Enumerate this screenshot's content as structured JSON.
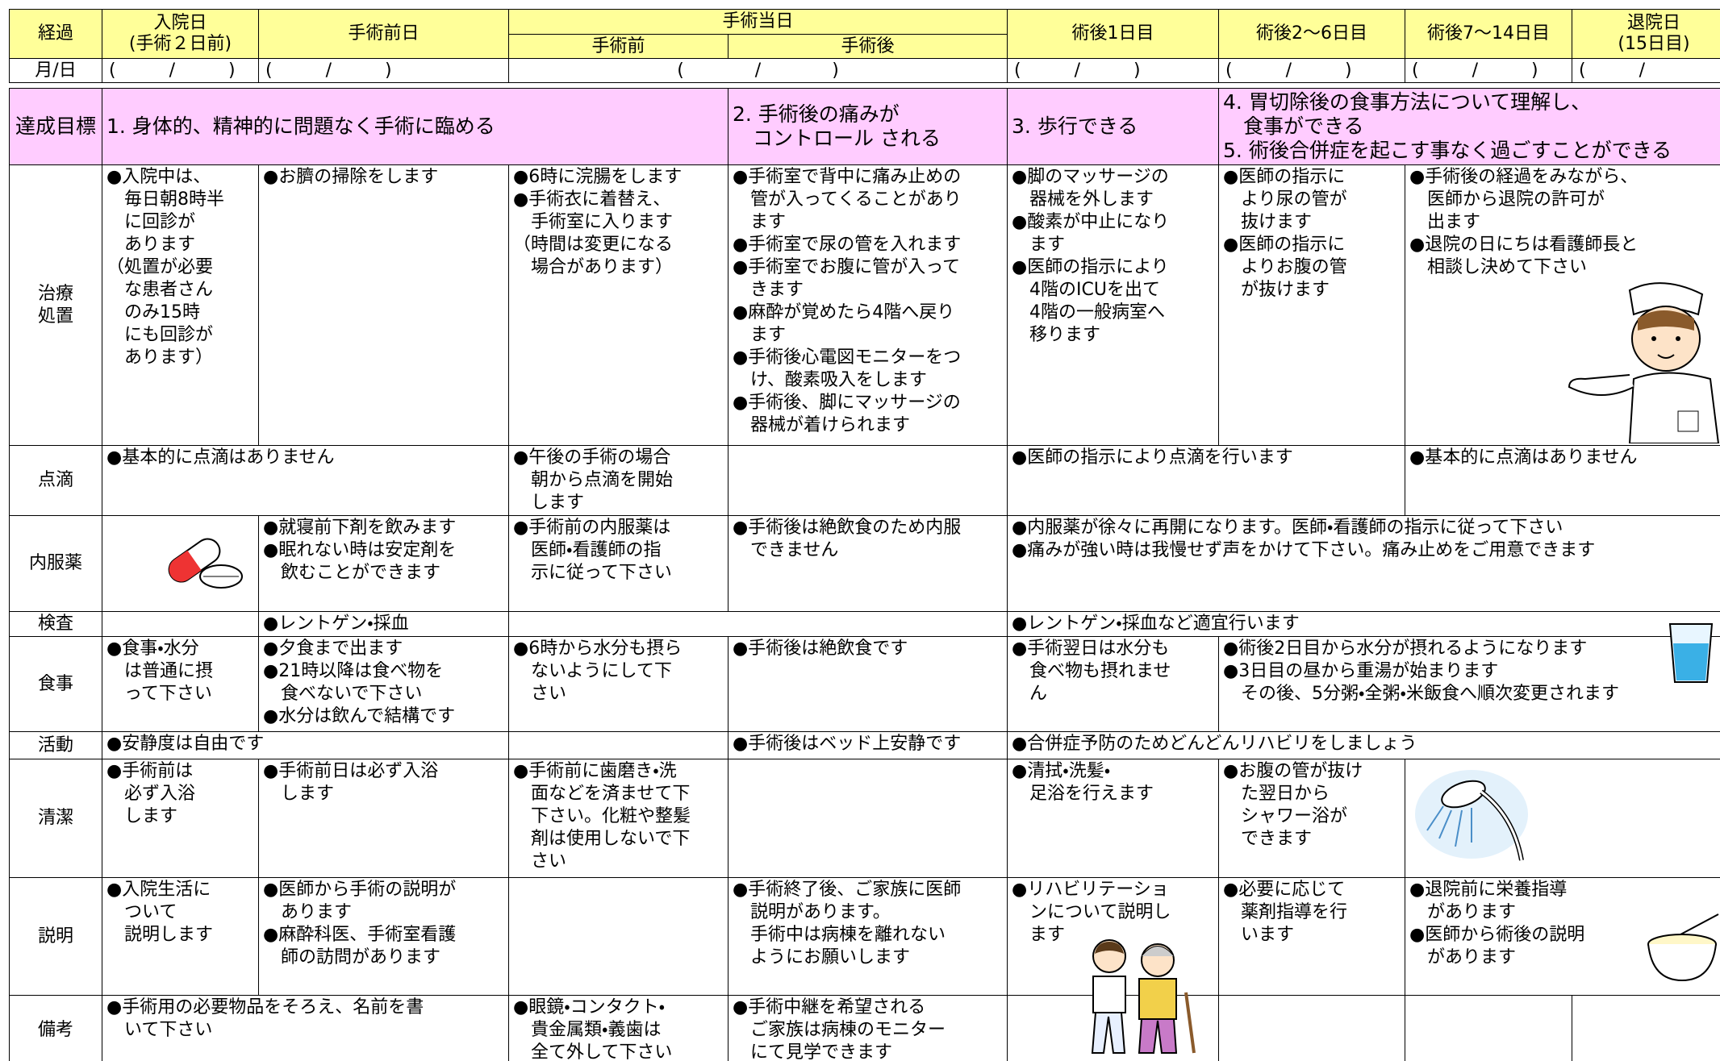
{
  "header": {
    "columns": [
      "経過",
      "入院日\n(手術２日前)",
      "手術前日",
      "手術当日",
      "手術前",
      "手術後",
      "術後1日目",
      "術後2～6日目",
      "術後7～14日目",
      "退院日\n(15日目)"
    ]
  },
  "date_row": {
    "label": "月/日",
    "cells": [
      "(　　　/　　　)",
      "(　　　/　　　)",
      "(　　　　/　　　　)",
      "(　　　/　　　)",
      "(　　　/　　　)",
      "(　　　/　　　)",
      "(　　　/　　"
    ]
  },
  "goals": {
    "label": "達成目標",
    "items": [
      "1. 身体的、精神的に問題なく手術に臨める",
      "2. 手術後の痛みが\n　コントロール される",
      "3. 歩行できる",
      "4. 胃切除後の食事方法について理解し、\n　食事ができる\n5. 術後合併症を起こす事なく過ごすことができる"
    ]
  },
  "rows": [
    {
      "label": "治療\n処置",
      "cells": [
        "●入院中は、\n　毎日朝8時半\n　に回診が\n　あります\n（処置が必要\n　な患者さん\n　のみ15時\n　にも回診が\n　あります）",
        "●お臍の掃除をします",
        "●6時に浣腸をします\n●手術衣に着替え、\n　手術室に入ります\n（時間は変更になる\n　場合があります）",
        "●手術室で背中に痛み止めの\n　管が入ってくることがあり\n　ます\n●手術室で尿の管を入れます\n●手術室でお腹に管が入って\n　きます\n●麻酔が覚めたら4階へ戻り\n　ます\n●手術後心電図モニターをつ\n　け、酸素吸入をします\n●手術後、脚にマッサージの\n　器械が着けられます",
        "●脚のマッサージの\n　器械を外します\n●酸素が中止になり\n　ます\n●医師の指示により\n　4階のICUを出て\n　4階の一般病室へ\n　移ります",
        "●医師の指示に\n　より尿の管が\n　抜けます\n●医師の指示に\n　よりお腹の管\n　が抜けます",
        "●手術後の経過をみながら、\n　医師から退院の許可が\n　出ます\n●退院の日にちは看護師長と\n　相談し決めて下さい"
      ]
    },
    {
      "label": "点滴",
      "cells": [
        "●基本的に点滴はありません",
        "●午後の手術の場合\n　朝から点滴を開始\n　します",
        "●医師の指示により点滴を行います",
        "●基本的に点滴はありません"
      ]
    },
    {
      "label": "内服薬",
      "cells": [
        "●就寝前下剤を飲みます\n●眠れない時は安定剤を\n　飲むことができます",
        "●手術前の内服薬は\n　医師・看護師の指\n　示に従って下さい",
        "●手術後は絶飲食のため内服\n　できません",
        "●内服薬が徐々に再開になります。医師・看護師の指示に従って下さい\n●痛みが強い時は我慢せず声をかけて下さい。痛み止めをご用意できます"
      ]
    },
    {
      "label": "検査",
      "cells": [
        "●レントゲン・採血",
        "●レントゲン・採血など適宜行います"
      ]
    },
    {
      "label": "食事",
      "cells": [
        "●食事・水分\n　は普通に摂\n　って下さい",
        "●夕食まで出ます\n●21時以降は食べ物を\n　食べないで下さい\n●水分は飲んで結構です",
        "●6時から水分も摂ら\n　ないようにして下\n　さい",
        "●手術後は絶飲食です",
        "●手術翌日は水分も\n　食べ物も摂れませ\n　ん",
        "●術後2日目から水分が摂れるようになります\n●3日目の昼から重湯が始まります\n　その後、5分粥・全粥・米飯食へ順次変更されます"
      ]
    },
    {
      "label": "活動",
      "cells": [
        "●安静度は自由です",
        "●手術後はベッド上安静です",
        "●合併症予防のためどんどんリハビリをしましょう"
      ]
    },
    {
      "label": "清潔",
      "cells": [
        "●手術前は\n　必ず入浴\n　します",
        "●手術前日は必ず入浴\n　します",
        "●手術前に歯磨き・洗\n　面などを済ませて下\n　下さい。化粧や整髪\n　剤は使用しないで下\n　さい",
        "●清拭・洗髪・\n　足浴を行えます",
        "●お腹の管が抜け\n　た翌日から\n　シャワー浴が\n　できます"
      ]
    },
    {
      "label": "説明",
      "cells": [
        "●入院生活に\n　ついて\n　説明します",
        "●医師から手術の説明が\n　あります\n●麻酔科医、手術室看護\n　師の訪問があります",
        "●手術終了後、ご家族に医師\n　説明があります。\n　手術中は病棟を離れない\n　ようにお願いします",
        "●リハビリテーショ\n　ンについて説明し\n　ます",
        "●必要に応じて\n　薬剤指導を行\n　います",
        "●退院前に栄養指導\n　があります\n●医師から術後の説明\n　があります"
      ]
    },
    {
      "label": "備考",
      "cells": [
        "●手術用の必要物品をそろえ、名前を書\n　いて下さい",
        "●眼鏡・コンタクト・\n　貴金属類・義歯は\n　全て外して下さい",
        "●手術中継を希望される\n　ご家族は病棟のモニター\n　にて見学できます"
      ]
    }
  ]
}
